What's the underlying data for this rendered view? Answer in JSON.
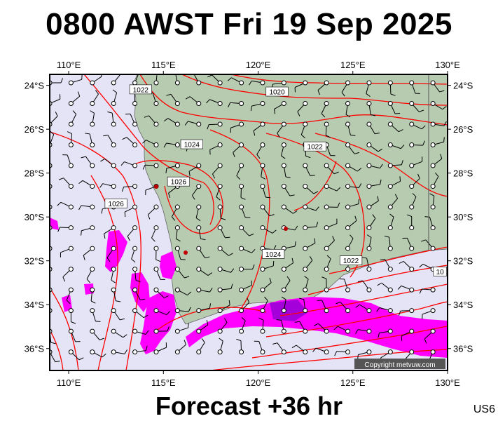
{
  "header": {
    "title": "0800 AWST Fri 19 Sep 2025"
  },
  "footer": {
    "forecast_label": "Forecast +36 hr",
    "region_code": "US6"
  },
  "map": {
    "colors": {
      "ocean": "#e4e4f6",
      "land": "#b6cbb0",
      "isobar": "#ff0000",
      "rain_light": "#ff00ff",
      "rain_heavy": "#9400d3"
    },
    "lon_range": [
      109,
      130
    ],
    "lat_range": [
      -37,
      -23.5
    ],
    "lon_ticks": [
      {
        "value": 110,
        "label": "110°E"
      },
      {
        "value": 115,
        "label": "115°E"
      },
      {
        "value": 120,
        "label": "120°E"
      },
      {
        "value": 125,
        "label": "125°E"
      },
      {
        "value": 130,
        "label": "130°E"
      }
    ],
    "lat_ticks": [
      {
        "value": -24,
        "label": "24°S"
      },
      {
        "value": -26,
        "label": "26°S"
      },
      {
        "value": -28,
        "label": "28°S"
      },
      {
        "value": -30,
        "label": "30°S"
      },
      {
        "value": -32,
        "label": "32°S"
      },
      {
        "value": -34,
        "label": "34°S"
      },
      {
        "value": -36,
        "label": "36°S"
      }
    ],
    "isobar_labels": [
      {
        "text": "1022",
        "lon": 113.8,
        "lat": -24.2
      },
      {
        "text": "1020",
        "lon": 121.0,
        "lat": -24.3
      },
      {
        "text": "1024",
        "lon": 116.5,
        "lat": -26.7
      },
      {
        "text": "1022",
        "lon": 123.0,
        "lat": -26.8
      },
      {
        "text": "1026",
        "lon": 115.8,
        "lat": -28.4
      },
      {
        "text": "1026",
        "lon": 112.5,
        "lat": -29.4
      },
      {
        "text": "1024",
        "lon": 120.8,
        "lat": -31.7
      },
      {
        "text": "1022",
        "lon": 124.9,
        "lat": -32.0
      },
      {
        "text": "10",
        "lon": 129.6,
        "lat": -32.5
      }
    ],
    "copyright": "Copyright metvuw.com"
  }
}
